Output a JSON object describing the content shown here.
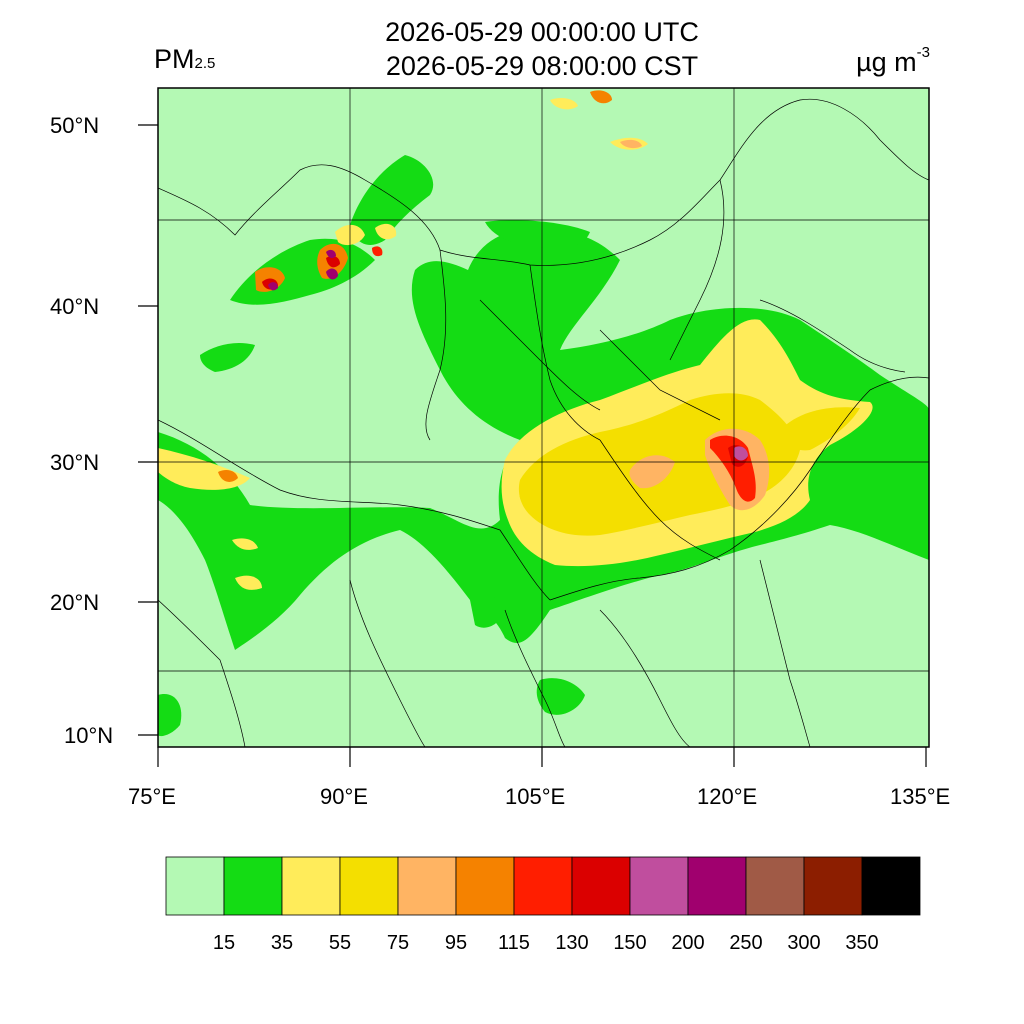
{
  "header": {
    "title_utc": "2026-05-29 00:00:00 UTC",
    "title_cst": "2026-05-29 08:00:00 CST",
    "variable_main": "PM",
    "variable_sub": "2.5",
    "unit_main": "µg m",
    "unit_sup": "-3"
  },
  "axes": {
    "lat_labels": [
      "50°N",
      "40°N",
      "30°N",
      "20°N",
      "10°N"
    ],
    "lon_labels": [
      "75°E",
      "90°E",
      "105°E",
      "120°E",
      "135°E"
    ]
  },
  "colorbar": {
    "colors": [
      "#b4f9b4",
      "#14dc14",
      "#ffec5a",
      "#f4df00",
      "#ffb463",
      "#f58200",
      "#ff1e00",
      "#db0000",
      "#c04e9e",
      "#a0006e",
      "#a05a46",
      "#8c1e00",
      "#000000"
    ],
    "labels": [
      "15",
      "35",
      "55",
      "75",
      "95",
      "115",
      "130",
      "150",
      "200",
      "250",
      "300",
      "350"
    ]
  },
  "map": {
    "background_color": "#b4f9b4",
    "region": "China and surrounding region",
    "lon_range_deg_e": [
      75,
      135
    ],
    "lat_range_deg_n": [
      9,
      53
    ]
  }
}
